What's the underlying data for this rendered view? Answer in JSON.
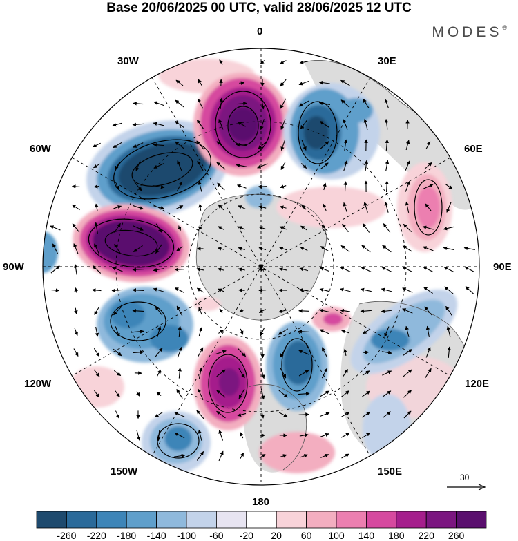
{
  "title": "Base 20/06/2025 00 UTC, valid 28/06/2025 12 UTC",
  "brand": "MODES",
  "brand_mark": "®",
  "longitude_labels": {
    "n0": "0",
    "n30e": "30E",
    "n60e": "60E",
    "n90e": "90E",
    "n120e": "120E",
    "n150e": "150E",
    "n180": "180",
    "n150w": "150W",
    "n120w": "120W",
    "n90w": "90W",
    "n60w": "60W",
    "n30w": "30W"
  },
  "vector_scale_label": "30",
  "colorbar": {
    "labels": [
      "-260",
      "-220",
      "-180",
      "-140",
      "-100",
      "-60",
      "-20",
      "20",
      "60",
      "100",
      "140",
      "180",
      "220",
      "260"
    ],
    "colors": [
      "#1e4a6e",
      "#2a6a9a",
      "#3d85b8",
      "#5f9fcb",
      "#8fb9dc",
      "#c3d3ea",
      "#e7e4f1",
      "#ffffff",
      "#f8d3d9",
      "#f3aec0",
      "#ec7fb0",
      "#d6499f",
      "#a51e8c",
      "#7b1680",
      "#5a0f6e"
    ]
  },
  "colors": {
    "land": "#d0d0d0",
    "coast": "#555555",
    "grid": "#000000"
  }
}
